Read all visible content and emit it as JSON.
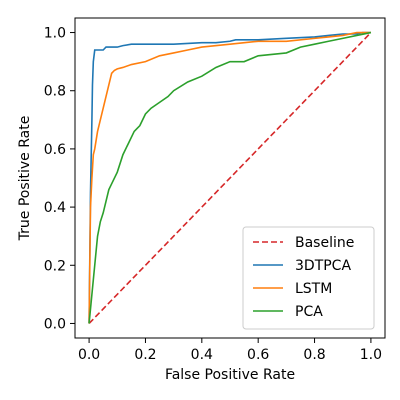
{
  "chart_data": {
    "type": "line",
    "title": "",
    "xlabel": "False Positive Rate",
    "ylabel": "True Positive Rate",
    "xlim": [
      -0.05,
      1.05
    ],
    "ylim": [
      -0.05,
      1.05
    ],
    "xticks": [
      0.0,
      0.2,
      0.4,
      0.6,
      0.8,
      1.0
    ],
    "yticks": [
      0.0,
      0.2,
      0.4,
      0.6,
      0.8,
      1.0
    ],
    "xtick_labels": [
      "0.0",
      "0.2",
      "0.4",
      "0.6",
      "0.8",
      "1.0"
    ],
    "ytick_labels": [
      "0.0",
      "0.2",
      "0.4",
      "0.6",
      "0.8",
      "1.0"
    ],
    "grid": false,
    "legend_position": "lower-right",
    "series": [
      {
        "name": "Baseline",
        "color": "#d62728",
        "style": "dashed",
        "x": [
          0.0,
          1.0
        ],
        "y": [
          0.0,
          1.0
        ]
      },
      {
        "name": "3DTPCA",
        "color": "#1f77b4",
        "style": "solid",
        "x": [
          0.0,
          0.005,
          0.01,
          0.012,
          0.015,
          0.02,
          0.025,
          0.03,
          0.05,
          0.06,
          0.07,
          0.09,
          0.1,
          0.12,
          0.15,
          0.2,
          0.3,
          0.4,
          0.45,
          0.5,
          0.52,
          0.6,
          0.7,
          0.8,
          0.85,
          0.9,
          0.95,
          0.97,
          1.0
        ],
        "y": [
          0.0,
          0.45,
          0.7,
          0.82,
          0.9,
          0.94,
          0.94,
          0.94,
          0.94,
          0.95,
          0.95,
          0.95,
          0.95,
          0.955,
          0.96,
          0.96,
          0.96,
          0.965,
          0.965,
          0.97,
          0.975,
          0.975,
          0.98,
          0.985,
          0.99,
          0.995,
          0.995,
          1.0,
          1.0
        ]
      },
      {
        "name": "LSTM",
        "color": "#ff7f0e",
        "style": "solid",
        "x": [
          0.0,
          0.005,
          0.01,
          0.015,
          0.02,
          0.03,
          0.04,
          0.05,
          0.06,
          0.07,
          0.08,
          0.09,
          0.1,
          0.12,
          0.15,
          0.2,
          0.25,
          0.3,
          0.35,
          0.4,
          0.5,
          0.6,
          0.7,
          0.8,
          0.85,
          0.9,
          0.95,
          1.0
        ],
        "y": [
          0.0,
          0.4,
          0.5,
          0.58,
          0.6,
          0.66,
          0.7,
          0.74,
          0.78,
          0.82,
          0.86,
          0.87,
          0.875,
          0.88,
          0.89,
          0.9,
          0.92,
          0.93,
          0.94,
          0.95,
          0.96,
          0.97,
          0.97,
          0.98,
          0.985,
          0.99,
          1.0,
          1.0
        ]
      },
      {
        "name": "PCA",
        "color": "#2ca02c",
        "style": "solid",
        "x": [
          0.0,
          0.01,
          0.015,
          0.02,
          0.03,
          0.04,
          0.05,
          0.06,
          0.07,
          0.08,
          0.1,
          0.12,
          0.14,
          0.16,
          0.18,
          0.2,
          0.22,
          0.25,
          0.28,
          0.3,
          0.35,
          0.4,
          0.45,
          0.5,
          0.55,
          0.6,
          0.7,
          0.75,
          0.8,
          0.85,
          0.9,
          0.95,
          1.0
        ],
        "y": [
          0.0,
          0.1,
          0.15,
          0.2,
          0.3,
          0.35,
          0.38,
          0.42,
          0.46,
          0.48,
          0.52,
          0.58,
          0.62,
          0.66,
          0.68,
          0.72,
          0.74,
          0.76,
          0.78,
          0.8,
          0.83,
          0.85,
          0.88,
          0.9,
          0.9,
          0.92,
          0.93,
          0.95,
          0.96,
          0.97,
          0.98,
          0.99,
          1.0
        ]
      }
    ]
  }
}
